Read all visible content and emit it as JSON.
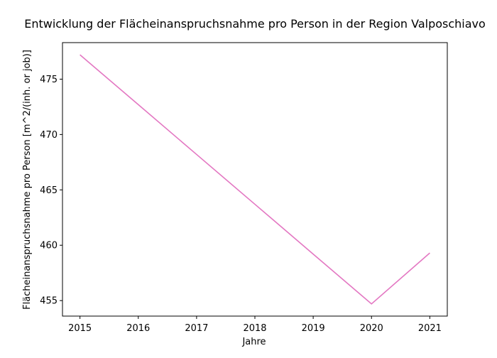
{
  "chart_data": {
    "type": "line",
    "title": "Entwicklung der Flächeinanspruchsnahme pro Person in der Region Valposchiavo",
    "xlabel": "Jahre",
    "ylabel": "Flächeinanspruchsnahme pro Person [m^2/(inh. or job)]",
    "x": [
      2015,
      2016,
      2017,
      2018,
      2019,
      2020,
      2021
    ],
    "series": [
      {
        "values": [
          477.2,
          472.7,
          468.2,
          463.7,
          459.2,
          454.7,
          459.3
        ],
        "color": "#e377c2"
      }
    ],
    "xlim": [
      2014.7,
      2021.3
    ],
    "ylim": [
      453.6,
      478.3
    ],
    "xticks": [
      2015,
      2016,
      2017,
      2018,
      2019,
      2020,
      2021
    ],
    "yticks": [
      455,
      460,
      465,
      470,
      475
    ],
    "grid": false,
    "legend": "none"
  }
}
